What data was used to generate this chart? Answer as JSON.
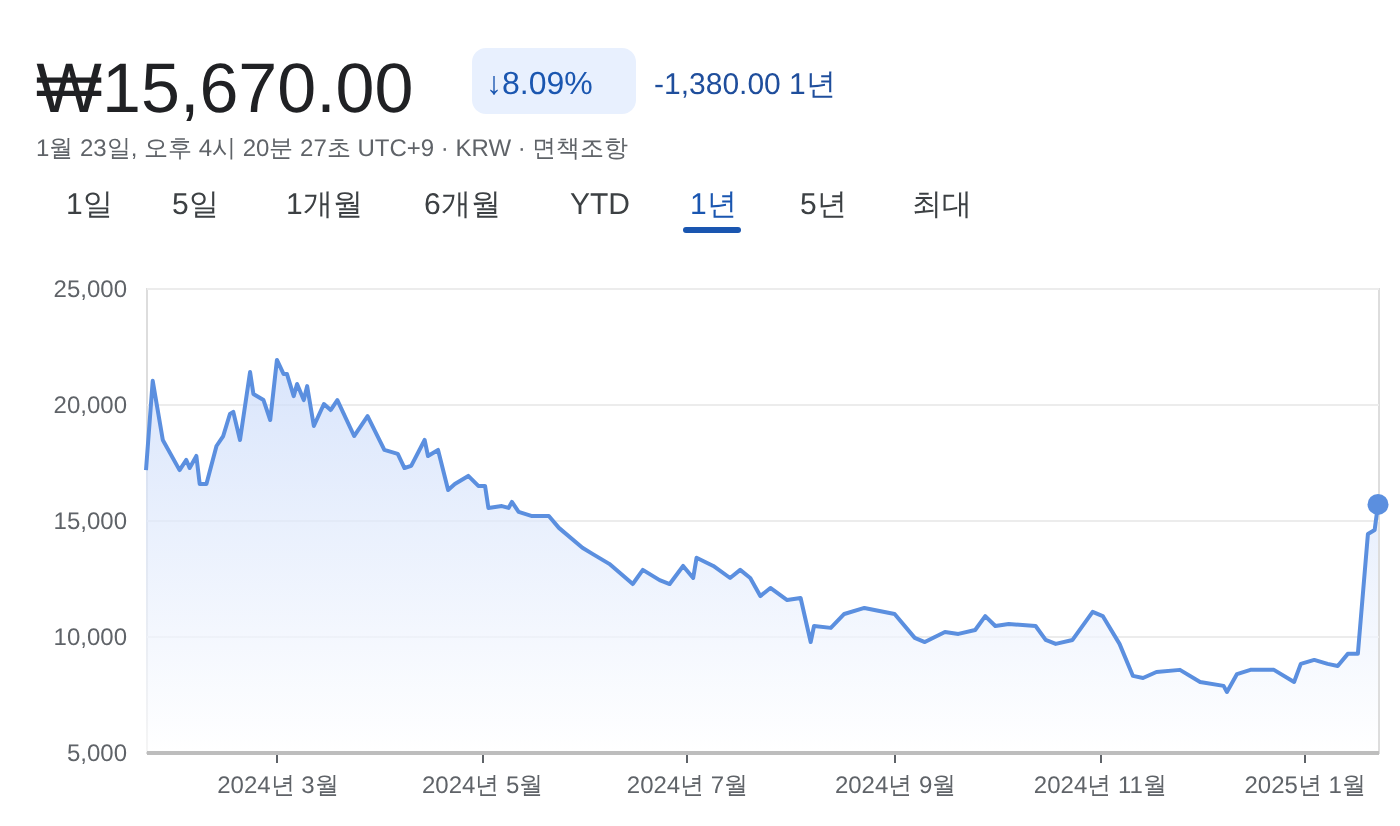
{
  "chart_data": {
    "type": "area",
    "title": "₩15,670.00",
    "subtitle": "1월 23일, 오후 4시 20분 27초 UTC+9 · KRW · 면책조항",
    "annotations": [
      "↓8.09%",
      "-1,380.00 1년",
      "1일",
      "5일",
      "1개월",
      "6개월",
      "YTD",
      "1년",
      "5년",
      "최대"
    ],
    "series": [
      {
        "color": "#5b8fdf",
        "x": [
          "2024-01-22",
          "2024-01-24",
          "2024-01-27",
          "2024-02-01",
          "2024-02-03",
          "2024-02-04",
          "2024-02-06",
          "2024-02-07",
          "2024-02-09",
          "2024-02-12",
          "2024-02-14",
          "2024-02-16",
          "2024-02-17",
          "2024-02-19",
          "2024-02-22",
          "2024-02-23",
          "2024-02-26",
          "2024-02-28",
          "2024-03-01",
          "2024-03-03",
          "2024-03-04",
          "2024-03-06",
          "2024-03-07",
          "2024-03-09",
          "2024-03-10",
          "2024-03-12",
          "2024-03-15",
          "2024-03-17",
          "2024-03-19",
          "2024-03-24",
          "2024-03-28",
          "2024-04-02",
          "2024-04-06",
          "2024-04-08",
          "2024-04-10",
          "2024-04-14",
          "2024-04-15",
          "2024-04-18",
          "2024-04-21",
          "2024-04-23",
          "2024-04-27",
          "2024-04-30",
          "2024-05-02",
          "2024-05-03",
          "2024-05-07",
          "2024-05-09",
          "2024-05-10",
          "2024-05-12",
          "2024-05-16",
          "2024-05-21",
          "2024-05-24",
          "2024-05-31",
          "2024-06-03",
          "2024-06-08",
          "2024-06-15",
          "2024-06-18",
          "2024-06-23",
          "2024-06-26",
          "2024-06-30",
          "2024-07-03",
          "2024-07-04",
          "2024-07-09",
          "2024-07-14",
          "2024-07-17",
          "2024-07-20",
          "2024-07-23",
          "2024-07-26",
          "2024-07-31",
          "2024-08-04",
          "2024-08-07",
          "2024-08-08",
          "2024-08-13",
          "2024-08-17",
          "2024-08-23",
          "2024-09-01",
          "2024-09-07",
          "2024-09-10",
          "2024-09-16",
          "2024-09-20",
          "2024-09-25",
          "2024-09-28",
          "2024-10-01",
          "2024-10-05",
          "2024-10-13",
          "2024-10-16",
          "2024-10-19",
          "2024-10-24",
          "2024-10-30",
          "2024-11-02",
          "2024-11-07",
          "2024-11-11",
          "2024-11-14",
          "2024-11-18",
          "2024-11-25",
          "2024-12-01",
          "2024-12-08",
          "2024-12-09",
          "2024-12-12",
          "2024-12-16",
          "2024-12-23",
          "2024-12-29",
          "2024-12-31",
          "2025-01-04",
          "2025-01-08",
          "2025-01-11",
          "2025-01-14",
          "2025-01-17",
          "2025-01-20",
          "2025-01-22",
          "2025-01-23"
        ],
        "values": [
          17150,
          21000,
          18450,
          17150,
          17590,
          17240,
          17760,
          16550,
          16550,
          18190,
          18620,
          19570,
          19660,
          18450,
          21380,
          20430,
          20170,
          19310,
          21900,
          21290,
          21290,
          20340,
          20860,
          20170,
          20770,
          19050,
          20000,
          19740,
          20170,
          18620,
          19480,
          18020,
          17850,
          17240,
          17330,
          18450,
          17760,
          18020,
          16290,
          16550,
          16900,
          16470,
          16470,
          15520,
          15600,
          15520,
          15780,
          15350,
          15170,
          15170,
          14660,
          13800,
          13540,
          13110,
          12240,
          12850,
          12410,
          12240,
          13020,
          12500,
          13370,
          13020,
          12500,
          12850,
          12500,
          11720,
          12070,
          11550,
          11640,
          9740,
          10430,
          10350,
          10950,
          11210,
          10950,
          9920,
          9740,
          10170,
          10090,
          10260,
          10860,
          10430,
          10520,
          10430,
          9830,
          9660,
          9830,
          11040,
          10860,
          9660,
          8280,
          8190,
          8450,
          8540,
          8020,
          7850,
          7590,
          8360,
          8540,
          8540,
          8020,
          8800,
          8970,
          8800,
          8710,
          9230,
          9230,
          14400,
          14570,
          15670
        ]
      },
      {
        "type": "scatter",
        "color": "#5b8fdf",
        "marker": "circle",
        "x": [
          "2025-01-23"
        ],
        "values": [
          15670
        ]
      }
    ],
    "xlim": [
      "2024-01-22",
      "2025-01-23"
    ],
    "xticks": [
      {
        "value": "2024-03-01",
        "label": "2024년 3월"
      },
      {
        "value": "2024-05-01",
        "label": "2024년 5월"
      },
      {
        "value": "2024-07-01",
        "label": "2024년 7월"
      },
      {
        "value": "2024-09-01",
        "label": "2024년 9월"
      },
      {
        "value": "2024-11-01",
        "label": "2024년 11월"
      },
      {
        "value": "2025-01-01",
        "label": "2025년 1월"
      }
    ],
    "ylim": [
      5000,
      25000
    ],
    "yticks": [
      {
        "value": 5000,
        "label": "5,000"
      },
      {
        "value": 10000,
        "label": "10,000"
      },
      {
        "value": 15000,
        "label": "15,000"
      },
      {
        "value": 20000,
        "label": "20,000"
      },
      {
        "value": 25000,
        "label": "25,000"
      }
    ],
    "grid": "y"
  }
}
